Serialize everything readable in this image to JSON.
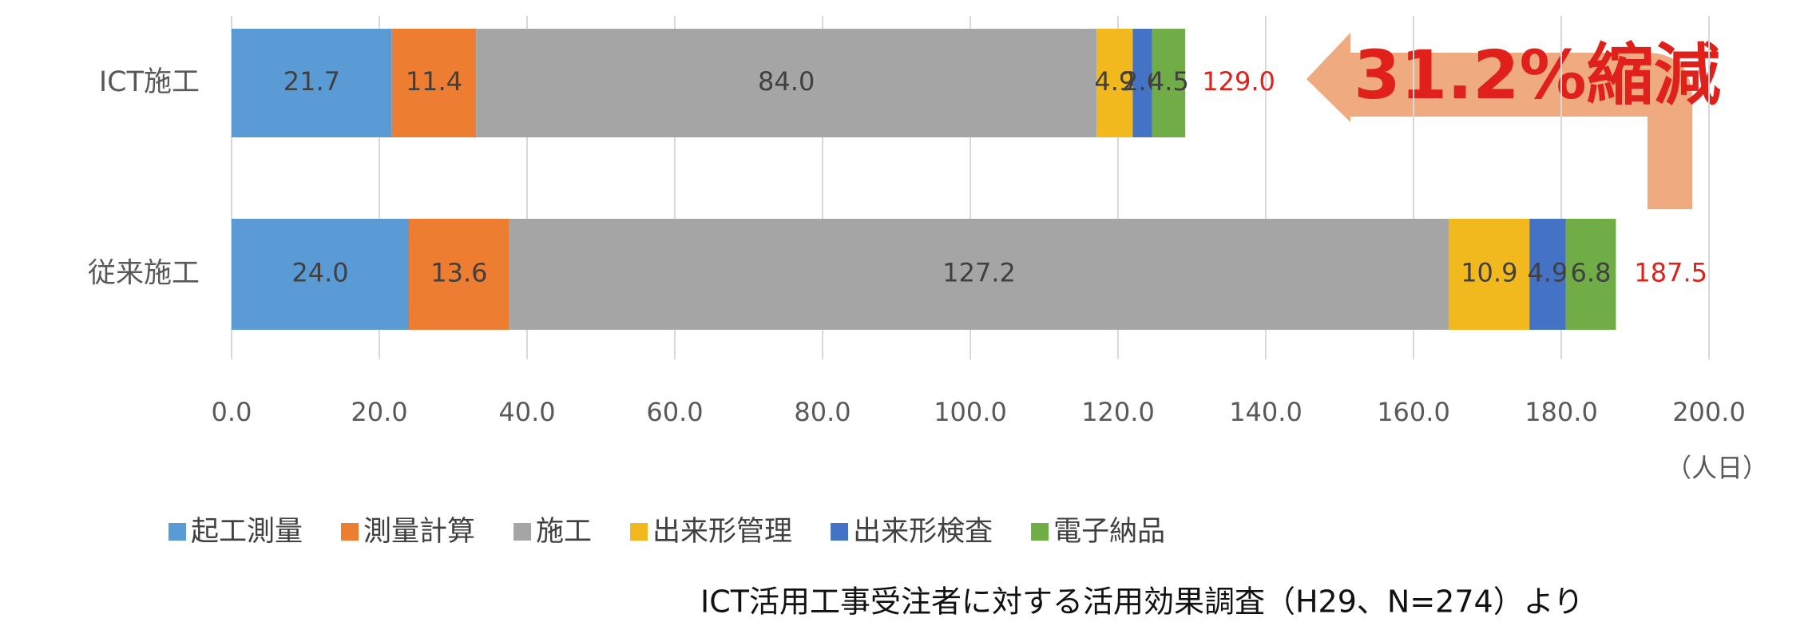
{
  "chart_data": {
    "type": "stacked-bar-horizontal",
    "categories": [
      "ICT施工",
      "従来施工"
    ],
    "series": [
      {
        "name": "起工測量",
        "color": "#5b9bd5",
        "values": [
          21.7,
          24.0
        ],
        "value_labels": [
          "21.7",
          "24.0"
        ]
      },
      {
        "name": "測量計算",
        "color": "#ed7d31",
        "values": [
          11.4,
          13.6
        ],
        "value_labels": [
          "11.4",
          "13.6"
        ]
      },
      {
        "name": "施工",
        "color": "#a5a5a5",
        "values": [
          84.0,
          127.2
        ],
        "value_labels": [
          "84.0",
          "127.2"
        ]
      },
      {
        "name": "出来形管理",
        "color": "#f2b91e",
        "values": [
          4.9,
          10.9
        ],
        "value_labels": [
          "4.9",
          "10.9"
        ]
      },
      {
        "name": "出来形検査",
        "color": "#4472c4",
        "values": [
          2.6,
          4.9
        ],
        "value_labels": [
          "2.6",
          "4.9"
        ]
      },
      {
        "name": "電子納品",
        "color": "#70ad47",
        "values": [
          4.5,
          6.8
        ],
        "value_labels": [
          "4.5",
          "6.8"
        ]
      }
    ],
    "totals": [
      129.0,
      187.5
    ],
    "total_labels": [
      "129.0",
      "187.5"
    ],
    "total_color": "#e0201b",
    "xlim": [
      0,
      200
    ],
    "xticks": [
      {
        "value": 0,
        "label": "0.0"
      },
      {
        "value": 20,
        "label": "20.0"
      },
      {
        "value": 40,
        "label": "40.0"
      },
      {
        "value": 60,
        "label": "60.0"
      },
      {
        "value": 80,
        "label": "80.0"
      },
      {
        "value": 100,
        "label": "100.0"
      },
      {
        "value": 120,
        "label": "120.0"
      },
      {
        "value": 140,
        "label": "140.0"
      },
      {
        "value": 160,
        "label": "160.0"
      },
      {
        "value": 180,
        "label": "180.0"
      },
      {
        "value": 200,
        "label": "200.0"
      }
    ],
    "x_unit": "（人日）",
    "grid": true,
    "legend": "bottom",
    "annotation": "31.2%縮減",
    "source": "ICT活用工事受注者に対する活用効果調査（H29、N=274）より"
  }
}
